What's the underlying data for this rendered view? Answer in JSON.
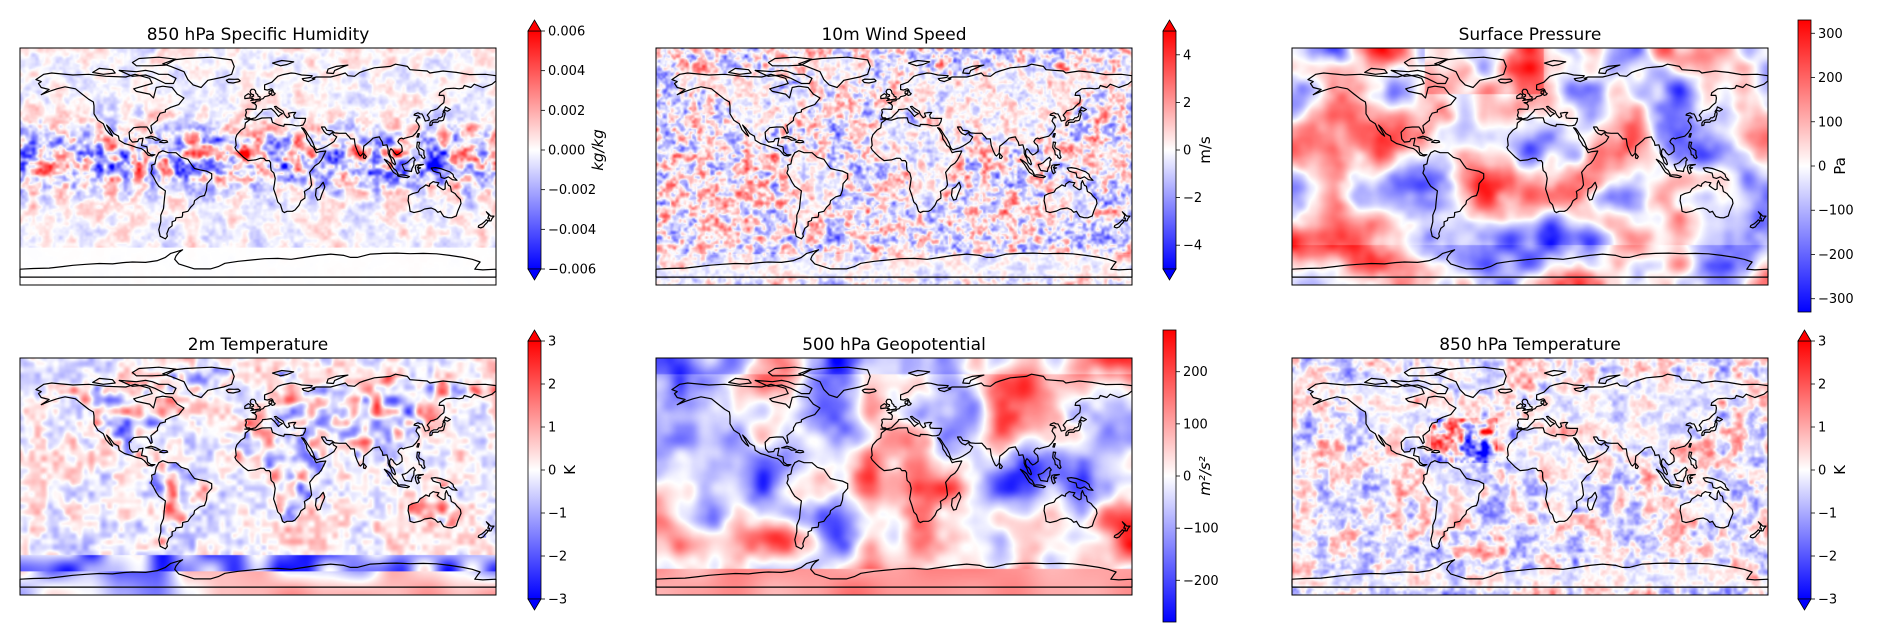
{
  "chart_data": [
    {
      "type": "heatmap",
      "title": "850 hPa Specific Humidity",
      "colorbar": {
        "label": "kg/kg",
        "label_style": "italic",
        "extend": "both",
        "ticks": [
          "0.006",
          "0.004",
          "0.002",
          "0.000",
          "−0.002",
          "−0.004",
          "−0.006"
        ],
        "range": [
          -0.006,
          0.006
        ]
      },
      "pattern": "tropical small-scale noise",
      "seed": 11
    },
    {
      "type": "heatmap",
      "title": "10m Wind Speed",
      "colorbar": {
        "label": "m/s",
        "label_style": "normal",
        "extend": "both",
        "ticks": [
          "4",
          "2",
          "0",
          "−2",
          "−4"
        ],
        "range": [
          -5,
          5
        ]
      },
      "pattern": "fine noise, ocean dominated",
      "seed": 23
    },
    {
      "type": "heatmap",
      "title": "Surface Pressure",
      "colorbar": {
        "label": "Pa",
        "label_style": "normal",
        "extend": "neither",
        "ticks": [
          "300",
          "200",
          "100",
          "0",
          "−100",
          "−200",
          "−300"
        ],
        "range": [
          -330,
          330
        ]
      },
      "pattern": "large smooth blobs",
      "seed": 37
    },
    {
      "type": "heatmap",
      "title": "2m Temperature",
      "colorbar": {
        "label": "K",
        "label_style": "normal",
        "extend": "both",
        "ticks": [
          "3",
          "2",
          "1",
          "0",
          "−1",
          "−2",
          "−3"
        ],
        "range": [
          -3,
          3
        ]
      },
      "pattern": "land noise, blue antarctic band",
      "seed": 41
    },
    {
      "type": "heatmap",
      "title": "500 hPa Geopotential",
      "colorbar": {
        "label": "m²/s²",
        "label_style": "italic",
        "extend": "neither",
        "ticks": [
          "200",
          "100",
          "0",
          "−100",
          "−200"
        ],
        "range": [
          -280,
          280
        ]
      },
      "pattern": "large smooth blobs",
      "seed": 53
    },
    {
      "type": "heatmap",
      "title": "850 hPa Temperature",
      "colorbar": {
        "label": "K",
        "label_style": "normal",
        "extend": "both",
        "ticks": [
          "3",
          "2",
          "1",
          "0",
          "−1",
          "−2",
          "−3"
        ],
        "range": [
          -3,
          3
        ]
      },
      "pattern": "medium noise, strong west atlantic features",
      "seed": 67
    }
  ],
  "colormap": {
    "low": "#0000ff",
    "mid": "#ffffff",
    "high": "#ff0000"
  },
  "coastline_color": "#000000"
}
